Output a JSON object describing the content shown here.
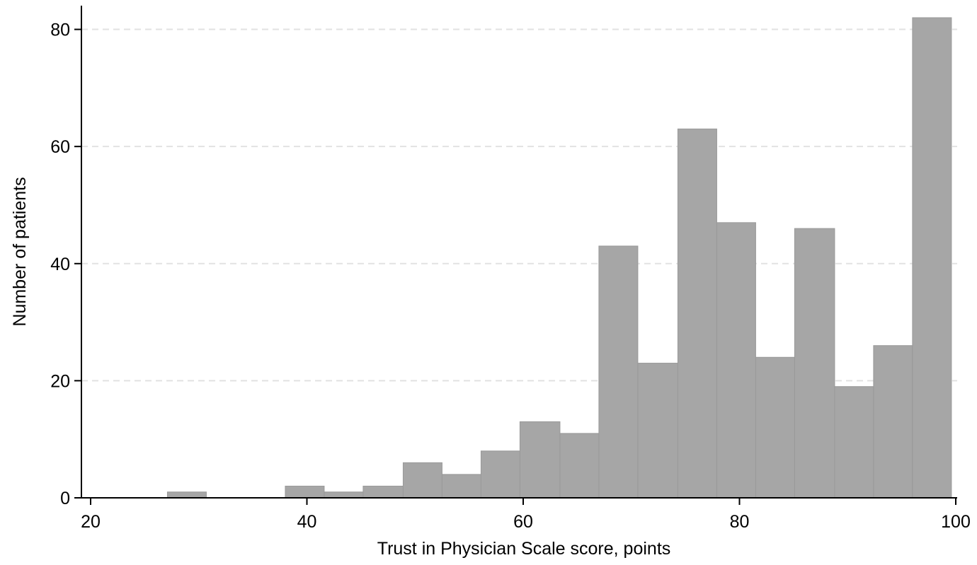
{
  "chart_data": {
    "type": "bar",
    "subtype": "histogram",
    "title": "",
    "xlabel": "Trust in Physician Scale score, points",
    "ylabel": "Number of patients",
    "xlim": [
      20,
      100
    ],
    "ylim": [
      0,
      82
    ],
    "x_ticks": [
      20,
      40,
      60,
      80,
      100
    ],
    "y_ticks": [
      0,
      20,
      40,
      60,
      80
    ],
    "grid": "horizontal dashed",
    "legend": "none",
    "bar_color": "#a6a6a6",
    "bins": [
      {
        "x0": 27.1,
        "x1": 30.7,
        "value": 1
      },
      {
        "x0": 30.7,
        "x1": 34.4,
        "value": 0
      },
      {
        "x0": 34.4,
        "x1": 38.0,
        "value": 0
      },
      {
        "x0": 38.0,
        "x1": 41.6,
        "value": 2
      },
      {
        "x0": 41.6,
        "x1": 45.2,
        "value": 1
      },
      {
        "x0": 45.2,
        "x1": 48.9,
        "value": 2
      },
      {
        "x0": 48.9,
        "x1": 52.5,
        "value": 6
      },
      {
        "x0": 52.5,
        "x1": 56.1,
        "value": 4
      },
      {
        "x0": 56.1,
        "x1": 59.7,
        "value": 8
      },
      {
        "x0": 59.7,
        "x1": 63.4,
        "value": 13
      },
      {
        "x0": 63.4,
        "x1": 67.0,
        "value": 11
      },
      {
        "x0": 67.0,
        "x1": 70.6,
        "value": 43
      },
      {
        "x0": 70.6,
        "x1": 74.3,
        "value": 23
      },
      {
        "x0": 74.3,
        "x1": 77.9,
        "value": 63
      },
      {
        "x0": 77.9,
        "x1": 81.5,
        "value": 47
      },
      {
        "x0": 81.5,
        "x1": 85.1,
        "value": 24
      },
      {
        "x0": 85.1,
        "x1": 88.8,
        "value": 46
      },
      {
        "x0": 88.8,
        "x1": 92.4,
        "value": 19
      },
      {
        "x0": 92.4,
        "x1": 96.0,
        "value": 26
      },
      {
        "x0": 96.0,
        "x1": 99.6,
        "value": 82
      }
    ]
  }
}
